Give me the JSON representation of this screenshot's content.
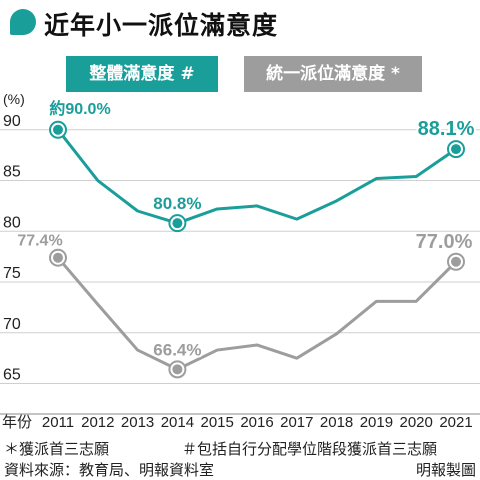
{
  "title": "近年小一派位滿意度",
  "colors": {
    "teal": "#1a9e9a",
    "gray": "#9d9d9d",
    "grid": "#cfcfcf"
  },
  "chart_data": {
    "type": "line",
    "x": [
      2011,
      2012,
      2013,
      2014,
      2015,
      2016,
      2017,
      2018,
      2019,
      2020,
      2021
    ],
    "x_tick_labels": [
      "年份",
      "2011",
      "2012",
      "2013",
      "2014",
      "2015",
      "2016",
      "2017",
      "2018",
      "2019",
      "2020",
      "2021"
    ],
    "ylabel": "(%)",
    "ylim": [
      62,
      92
    ],
    "yticks": [
      65,
      70,
      75,
      80,
      85,
      90
    ],
    "grid": true,
    "legend_placement": "top",
    "series": [
      {
        "name": "整體滿意度 #",
        "color": "#1a9e9a",
        "values": [
          90.0,
          85.0,
          82.0,
          80.8,
          82.2,
          82.5,
          81.2,
          83.0,
          85.2,
          85.4,
          88.1
        ],
        "labels": [
          {
            "index": 0,
            "text": "約90.0%"
          },
          {
            "index": 3,
            "text": "80.8%"
          },
          {
            "index": 10,
            "text": "88.1%"
          }
        ]
      },
      {
        "name": "統一派位滿意度 *",
        "color": "#9d9d9d",
        "values": [
          77.4,
          72.8,
          68.3,
          66.4,
          68.3,
          68.8,
          67.5,
          69.9,
          73.1,
          73.1,
          77.0
        ],
        "labels": [
          {
            "index": 0,
            "text": "77.4%"
          },
          {
            "index": 3,
            "text": "66.4%"
          },
          {
            "index": 10,
            "text": "77.0%"
          }
        ]
      }
    ]
  },
  "footnote_star": "＊獲派首三志願",
  "footnote_hash": "＃包括自行分配學位階段獲派首三志願",
  "source": "資料來源：教育局、明報資料室",
  "credit": "明報製圖"
}
